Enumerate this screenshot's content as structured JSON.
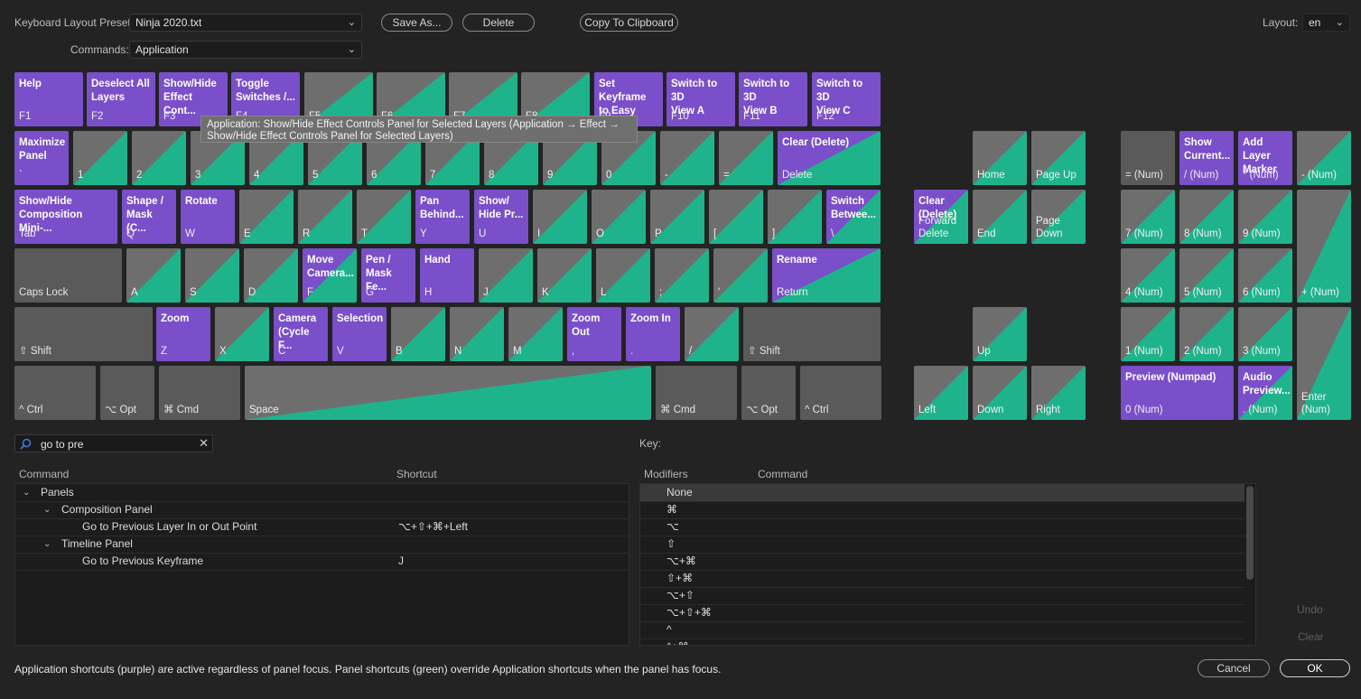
{
  "preset": {
    "label": "Keyboard Layout Preset:",
    "value": "Ninja 2020.txt"
  },
  "commands": {
    "label": "Commands:",
    "value": "Application"
  },
  "buttons": {
    "save_as": "Save As...",
    "delete": "Delete",
    "copy": "Copy To Clipboard",
    "cancel": "Cancel",
    "ok": "OK",
    "undo": "Undo",
    "clear": "Clear"
  },
  "layout": {
    "label": "Layout:",
    "value": "en"
  },
  "tooltip": "Application: Show/Hide Effect Controls Panel for Selected Layers (Application → Effect → Show/Hide Effect Controls Panel for Selected Layers)",
  "colors": {
    "purple": "#7a4fc9",
    "green": "#1fb38c",
    "gray": "#5a5a5a"
  },
  "keys": [
    {
      "id": "f1",
      "top": "Help",
      "bot": "F1",
      "style": "purple"
    },
    {
      "id": "f2",
      "top": "Deselect All\nLayers",
      "bot": "F2",
      "style": "purple"
    },
    {
      "id": "f3",
      "top": "Show/Hide\nEffect Cont...",
      "bot": "F3",
      "style": "purple"
    },
    {
      "id": "f4",
      "top": "Toggle\nSwitches /...",
      "bot": "F4",
      "style": "purple"
    },
    {
      "id": "f5",
      "top": "",
      "bot": "F5",
      "style": "green"
    },
    {
      "id": "f6",
      "top": "",
      "bot": "F6",
      "style": "green"
    },
    {
      "id": "f7",
      "top": "",
      "bot": "F7",
      "style": "green"
    },
    {
      "id": "f8",
      "top": "",
      "bot": "F8",
      "style": "green"
    },
    {
      "id": "f9",
      "top": "Set Keyframe\nto Easy Ease",
      "bot": "F9",
      "style": "purple"
    },
    {
      "id": "f10",
      "top": "Switch to 3D\nView A",
      "bot": "F10",
      "style": "purple"
    },
    {
      "id": "f11",
      "top": "Switch to 3D\nView B",
      "bot": "F11",
      "style": "purple"
    },
    {
      "id": "f12",
      "top": "Switch to 3D\nView C",
      "bot": "F12",
      "style": "purple"
    },
    {
      "id": "grave",
      "top": "Maximize\nPanel",
      "bot": "`",
      "style": "purple"
    },
    {
      "id": "n1",
      "top": "",
      "bot": "1",
      "style": "green"
    },
    {
      "id": "n2",
      "top": "",
      "bot": "2",
      "style": "green"
    },
    {
      "id": "n3",
      "top": "",
      "bot": "3",
      "style": "green"
    },
    {
      "id": "n4",
      "top": "",
      "bot": "4",
      "style": "green"
    },
    {
      "id": "n5",
      "top": "",
      "bot": "5",
      "style": "green"
    },
    {
      "id": "n6",
      "top": "",
      "bot": "6",
      "style": "green"
    },
    {
      "id": "n7",
      "top": "",
      "bot": "7",
      "style": "green"
    },
    {
      "id": "n8",
      "top": "",
      "bot": "8",
      "style": "green"
    },
    {
      "id": "n9",
      "top": "",
      "bot": "9",
      "style": "green"
    },
    {
      "id": "n0",
      "top": "",
      "bot": "0",
      "style": "green"
    },
    {
      "id": "minus",
      "top": "",
      "bot": "-",
      "style": "green"
    },
    {
      "id": "equal",
      "top": "",
      "bot": "=",
      "style": "green"
    },
    {
      "id": "backspace",
      "top": "Clear (Delete)",
      "bot": "Delete",
      "style": "pg"
    },
    {
      "id": "tab",
      "top": "Show/Hide\nComposition Mini-...",
      "bot": "Tab",
      "style": "purple"
    },
    {
      "id": "q",
      "top": "Shape /\nMask (C...",
      "bot": "Q",
      "style": "purple"
    },
    {
      "id": "w",
      "top": "Rotate",
      "bot": "W",
      "style": "purple"
    },
    {
      "id": "e",
      "top": "",
      "bot": "E",
      "style": "green"
    },
    {
      "id": "r",
      "top": "",
      "bot": "R",
      "style": "green"
    },
    {
      "id": "t",
      "top": "",
      "bot": "T",
      "style": "green"
    },
    {
      "id": "y",
      "top": "Pan\nBehind...",
      "bot": "Y",
      "style": "purple"
    },
    {
      "id": "u",
      "top": "Show/\nHide Pr...",
      "bot": "U",
      "style": "purple"
    },
    {
      "id": "i",
      "top": "",
      "bot": "I",
      "style": "green"
    },
    {
      "id": "o",
      "top": "",
      "bot": "O",
      "style": "green"
    },
    {
      "id": "p",
      "top": "",
      "bot": "P",
      "style": "green"
    },
    {
      "id": "lbracket",
      "top": "",
      "bot": "[",
      "style": "green"
    },
    {
      "id": "rbracket",
      "top": "",
      "bot": "]",
      "style": "green"
    },
    {
      "id": "backslash",
      "top": "Switch\nBetwee...",
      "bot": "\\",
      "style": "pg"
    },
    {
      "id": "capslock",
      "top": "",
      "bot": "Caps Lock",
      "style": "gray"
    },
    {
      "id": "a",
      "top": "",
      "bot": "A",
      "style": "green"
    },
    {
      "id": "s",
      "top": "",
      "bot": "S",
      "style": "green"
    },
    {
      "id": "d",
      "top": "",
      "bot": "D",
      "style": "green"
    },
    {
      "id": "f",
      "top": "Move\nCamera...",
      "bot": "F",
      "style": "pg"
    },
    {
      "id": "g",
      "top": "Pen /\nMask Fe...",
      "bot": "G",
      "style": "purple"
    },
    {
      "id": "h",
      "top": "Hand",
      "bot": "H",
      "style": "purple"
    },
    {
      "id": "j",
      "top": "",
      "bot": "J",
      "style": "green"
    },
    {
      "id": "k",
      "top": "",
      "bot": "K",
      "style": "green"
    },
    {
      "id": "l",
      "top": "",
      "bot": "L",
      "style": "green"
    },
    {
      "id": "semicolon",
      "top": "",
      "bot": ";",
      "style": "green"
    },
    {
      "id": "quote",
      "top": "",
      "bot": "'",
      "style": "green"
    },
    {
      "id": "return",
      "top": "Rename",
      "bot": "Return",
      "style": "pg"
    },
    {
      "id": "lshift",
      "top": "",
      "bot": "⇧ Shift",
      "style": "gray"
    },
    {
      "id": "z",
      "top": "Zoom",
      "bot": "Z",
      "style": "purple"
    },
    {
      "id": "x",
      "top": "",
      "bot": "X",
      "style": "green"
    },
    {
      "id": "c",
      "top": "Camera\n(Cycle F...",
      "bot": "C",
      "style": "purple"
    },
    {
      "id": "v",
      "top": "Selection",
      "bot": "V",
      "style": "purple"
    },
    {
      "id": "b",
      "top": "",
      "bot": "B",
      "style": "green"
    },
    {
      "id": "n",
      "top": "",
      "bot": "N",
      "style": "green"
    },
    {
      "id": "m",
      "top": "",
      "bot": "M",
      "style": "green"
    },
    {
      "id": "comma",
      "top": "Zoom Out",
      "bot": ",",
      "style": "purple"
    },
    {
      "id": "period",
      "top": "Zoom In",
      "bot": ".",
      "style": "purple"
    },
    {
      "id": "slash",
      "top": "",
      "bot": "/",
      "style": "green"
    },
    {
      "id": "rshift",
      "top": "",
      "bot": "⇧ Shift",
      "style": "gray"
    },
    {
      "id": "lctrl",
      "top": "",
      "bot": "^ Ctrl",
      "style": "gray"
    },
    {
      "id": "lopt",
      "top": "",
      "bot": "⌥ Opt",
      "style": "gray"
    },
    {
      "id": "lcmd",
      "top": "",
      "bot": "⌘ Cmd",
      "style": "gray"
    },
    {
      "id": "space",
      "top": "",
      "bot": "Space",
      "style": "green"
    },
    {
      "id": "rcmd",
      "top": "",
      "bot": "⌘ Cmd",
      "style": "gray"
    },
    {
      "id": "ropt",
      "top": "",
      "bot": "⌥ Opt",
      "style": "gray"
    },
    {
      "id": "rctrl",
      "top": "",
      "bot": "^ Ctrl",
      "style": "gray"
    },
    {
      "id": "home",
      "top": "",
      "bot": "Home",
      "style": "green"
    },
    {
      "id": "pageup",
      "top": "",
      "bot": "Page Up",
      "style": "green"
    },
    {
      "id": "fwddelete",
      "top": "Clear\n(Delete)",
      "bot": "Forward\nDelete",
      "style": "pg"
    },
    {
      "id": "end",
      "top": "",
      "bot": "End",
      "style": "green"
    },
    {
      "id": "pagedown",
      "top": "",
      "bot": "Page\nDown",
      "style": "green"
    },
    {
      "id": "up",
      "top": "",
      "bot": "Up",
      "style": "green"
    },
    {
      "id": "left",
      "top": "",
      "bot": "Left",
      "style": "green"
    },
    {
      "id": "down",
      "top": "",
      "bot": "Down",
      "style": "green"
    },
    {
      "id": "right",
      "top": "",
      "bot": "Right",
      "style": "green"
    },
    {
      "id": "numeq",
      "top": "",
      "bot": "= (Num)",
      "style": "gray"
    },
    {
      "id": "numslash",
      "top": "Show\nCurrent...",
      "bot": "/ (Num)",
      "style": "purple"
    },
    {
      "id": "numstar",
      "top": "Add Layer\nMarker",
      "bot": "* (Num)",
      "style": "purple"
    },
    {
      "id": "numminus",
      "top": "",
      "bot": "- (Num)",
      "style": "green"
    },
    {
      "id": "num7",
      "top": "",
      "bot": "7 (Num)",
      "style": "green"
    },
    {
      "id": "num8",
      "top": "",
      "bot": "8 (Num)",
      "style": "green"
    },
    {
      "id": "num9",
      "top": "",
      "bot": "9 (Num)",
      "style": "green"
    },
    {
      "id": "numplus",
      "top": "",
      "bot": "+ (Num)",
      "style": "green"
    },
    {
      "id": "num4",
      "top": "",
      "bot": "4 (Num)",
      "style": "green"
    },
    {
      "id": "num5",
      "top": "",
      "bot": "5 (Num)",
      "style": "green"
    },
    {
      "id": "num6",
      "top": "",
      "bot": "6 (Num)",
      "style": "green"
    },
    {
      "id": "num1",
      "top": "",
      "bot": "1 (Num)",
      "style": "green"
    },
    {
      "id": "num2",
      "top": "",
      "bot": "2 (Num)",
      "style": "green"
    },
    {
      "id": "num3",
      "top": "",
      "bot": "3 (Num)",
      "style": "green"
    },
    {
      "id": "numenter",
      "top": "",
      "bot": "Enter\n(Num)",
      "style": "green"
    },
    {
      "id": "num0",
      "top": "Preview (Numpad)",
      "bot": "0 (Num)",
      "style": "purple"
    },
    {
      "id": "numdot",
      "top": "Audio\nPreview...",
      "bot": ". (Num)",
      "style": "pg"
    }
  ],
  "search": {
    "value": "go to pre",
    "icon": "search-icon"
  },
  "command_table": {
    "headers": {
      "command": "Command",
      "shortcut": "Shortcut"
    },
    "rows": [
      {
        "label": "Panels",
        "shortcut": "",
        "level": 0,
        "expanded": true
      },
      {
        "label": "Composition Panel",
        "shortcut": "",
        "level": 1,
        "expanded": true
      },
      {
        "label": "Go to Previous Layer In or Out Point",
        "shortcut": "⌥+⇧+⌘+Left",
        "level": 2
      },
      {
        "label": "Timeline Panel",
        "shortcut": "",
        "level": 1,
        "expanded": true
      },
      {
        "label": "Go to Previous Keyframe",
        "shortcut": "J",
        "level": 2
      }
    ]
  },
  "key_panel": {
    "label": "Key:",
    "headers": {
      "modifiers": "Modifiers",
      "command": "Command"
    },
    "rows": [
      "None",
      "⌘",
      "⌥",
      "⇧",
      "⌥+⌘",
      "⇧+⌘",
      "⌥+⇧",
      "⌥+⇧+⌘",
      "^",
      "^+⌘"
    ]
  },
  "footer_note": "Application shortcuts (purple) are active regardless of panel focus. Panel shortcuts (green) override Application shortcuts when the panel has focus."
}
